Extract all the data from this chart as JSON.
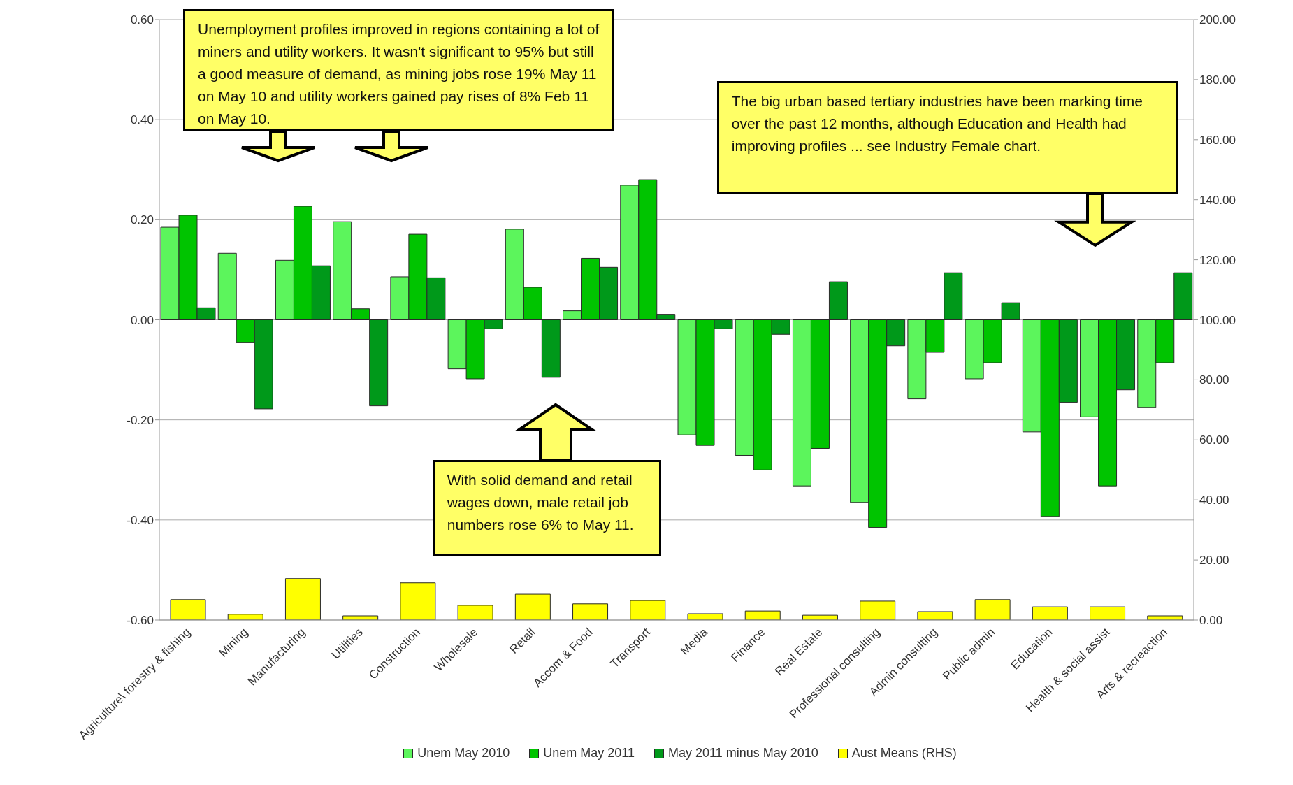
{
  "chart_data": {
    "type": "bar",
    "categories": [
      "Agriculture\\ forestry & fishing",
      "Mining",
      "Manufacturing",
      "Utilities",
      "Construction",
      "Wholesale",
      "Retail",
      "Accom & Food",
      "Transport",
      "Media",
      "Finance",
      "Real Estate",
      "Professional consulting",
      "Admin consulting",
      "Public admin",
      "Education",
      "Health & social assist",
      "Arts & recreaction"
    ],
    "series": [
      {
        "name": "Unem May 2010",
        "color": "#5cf55c",
        "values": [
          0.185,
          0.133,
          0.119,
          0.196,
          0.086,
          -0.098,
          0.181,
          0.018,
          0.269,
          -0.23,
          -0.271,
          -0.332,
          -0.365,
          -0.158,
          -0.118,
          -0.224,
          -0.194,
          -0.175
        ]
      },
      {
        "name": "Unem May 2011",
        "color": "#00c400",
        "values": [
          0.209,
          -0.045,
          0.227,
          0.022,
          0.171,
          -0.118,
          0.065,
          0.123,
          0.28,
          -0.251,
          -0.3,
          -0.257,
          -0.415,
          -0.065,
          -0.086,
          -0.393,
          -0.332,
          -0.086
        ]
      },
      {
        "name": "May 2011 minus May 2010",
        "color": "#00991a",
        "values": [
          0.024,
          -0.178,
          0.108,
          -0.172,
          0.084,
          -0.018,
          -0.115,
          0.105,
          0.011,
          -0.018,
          -0.029,
          0.076,
          -0.052,
          0.094,
          0.034,
          -0.165,
          -0.14,
          0.094
        ]
      },
      {
        "name": "Aust Means (RHS)",
        "color": "#ffff00",
        "axis": "y2",
        "values": [
          6.8,
          1.9,
          13.8,
          1.4,
          12.4,
          4.9,
          8.6,
          5.4,
          6.5,
          2.1,
          3,
          1.6,
          6.3,
          2.8,
          6.8,
          4.4,
          4.4,
          1.4
        ]
      }
    ],
    "ylim": [
      -0.6,
      0.6
    ],
    "yticks": [
      {
        "value": -0.6,
        "label": "-0.60"
      },
      {
        "value": -0.4,
        "label": "-0.40"
      },
      {
        "value": -0.2,
        "label": "-0.20"
      },
      {
        "value": 0,
        "label": "0.00"
      },
      {
        "value": 0.2,
        "label": "0.20"
      },
      {
        "value": 0.4,
        "label": "0.40"
      },
      {
        "value": 0.6,
        "label": "0.60"
      }
    ],
    "y2lim": [
      0,
      200
    ],
    "y2ticks": [
      {
        "value": 0,
        "label": "0.00"
      },
      {
        "value": 20,
        "label": "20.00"
      },
      {
        "value": 40,
        "label": "40.00"
      },
      {
        "value": 60,
        "label": "60.00"
      },
      {
        "value": 80,
        "label": "80.00"
      },
      {
        "value": 100,
        "label": "100.00"
      },
      {
        "value": 120,
        "label": "120.00"
      },
      {
        "value": 140,
        "label": "140.00"
      },
      {
        "value": 160,
        "label": "160.00"
      },
      {
        "value": 180,
        "label": "180.00"
      },
      {
        "value": 200,
        "label": "200.00"
      }
    ],
    "grid": "y",
    "legend": "bottom",
    "annotations": [
      "Unemployment profiles improved in regions containing a lot of miners and utility workers. It wasn't significant to 95% but still a good measure of demand, as mining jobs rose 19% May 11 on May 10 and utility workers gained pay rises of 8% Feb 11 on May 10.",
      "The big urban based tertiary industries have been marking time over the past 12 months, although Education and Health had improving profiles ... see Industry Female chart.",
      "With solid demand and retail wages down, male retail job numbers rose 6% to May 11."
    ]
  }
}
